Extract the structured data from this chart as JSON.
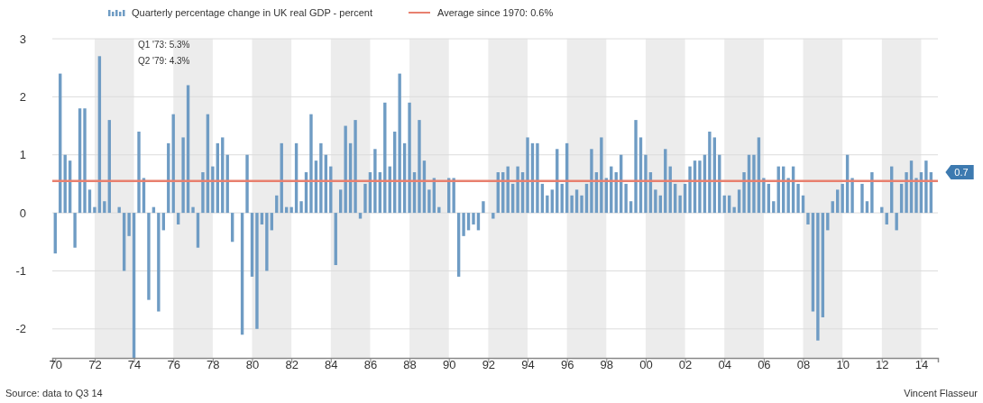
{
  "chart_data": {
    "type": "bar",
    "x": [
      1970,
      1970.25,
      1970.5,
      1970.75,
      1971,
      1971.25,
      1971.5,
      1971.75,
      1972,
      1972.25,
      1972.5,
      1972.75,
      1973,
      1973.25,
      1973.5,
      1973.75,
      1974,
      1974.25,
      1974.5,
      1974.75,
      1975,
      1975.25,
      1975.5,
      1975.75,
      1976,
      1976.25,
      1976.5,
      1976.75,
      1977,
      1977.25,
      1977.5,
      1977.75,
      1978,
      1978.25,
      1978.5,
      1978.75,
      1979,
      1979.25,
      1979.5,
      1979.75,
      1980,
      1980.25,
      1980.5,
      1980.75,
      1981,
      1981.25,
      1981.5,
      1981.75,
      1982,
      1982.25,
      1982.5,
      1982.75,
      1983,
      1983.25,
      1983.5,
      1983.75,
      1984,
      1984.25,
      1984.5,
      1984.75,
      1985,
      1985.25,
      1985.5,
      1985.75,
      1986,
      1986.25,
      1986.5,
      1986.75,
      1987,
      1987.25,
      1987.5,
      1987.75,
      1988,
      1988.25,
      1988.5,
      1988.75,
      1989,
      1989.25,
      1989.5,
      1989.75,
      1990,
      1990.25,
      1990.5,
      1990.75,
      1991,
      1991.25,
      1991.5,
      1991.75,
      1992,
      1992.25,
      1992.5,
      1992.75,
      1993,
      1993.25,
      1993.5,
      1993.75,
      1994,
      1994.25,
      1994.5,
      1994.75,
      1995,
      1995.25,
      1995.5,
      1995.75,
      1996,
      1996.25,
      1996.5,
      1996.75,
      1997,
      1997.25,
      1997.5,
      1997.75,
      1998,
      1998.25,
      1998.5,
      1998.75,
      1999,
      1999.25,
      1999.5,
      1999.75,
      2000,
      2000.25,
      2000.5,
      2000.75,
      2001,
      2001.25,
      2001.5,
      2001.75,
      2002,
      2002.25,
      2002.5,
      2002.75,
      2003,
      2003.25,
      2003.5,
      2003.75,
      2004,
      2004.25,
      2004.5,
      2004.75,
      2005,
      2005.25,
      2005.5,
      2005.75,
      2006,
      2006.25,
      2006.5,
      2006.75,
      2007,
      2007.25,
      2007.5,
      2007.75,
      2008,
      2008.25,
      2008.5,
      2008.75,
      2009,
      2009.25,
      2009.5,
      2009.75,
      2010,
      2010.25,
      2010.5,
      2010.75,
      2011,
      2011.25,
      2011.5,
      2011.75,
      2012,
      2012.25,
      2012.5,
      2012.75,
      2013,
      2013.25,
      2013.5,
      2013.75,
      2014,
      2014.25,
      2014.5
    ],
    "series": [
      {
        "name": "Quarterly percentage change in UK real GDP - percent",
        "color": "#6f9cc4",
        "values": [
          -0.7,
          2.4,
          1.0,
          0.9,
          -0.6,
          1.8,
          1.8,
          0.4,
          0.1,
          2.7,
          0.2,
          1.6,
          null,
          0.1,
          -1.0,
          -0.4,
          -2.5,
          1.4,
          0.6,
          -1.5,
          0.1,
          -1.7,
          -0.3,
          1.2,
          1.7,
          -0.2,
          1.3,
          2.2,
          0.1,
          -0.6,
          0.7,
          1.7,
          0.8,
          1.2,
          1.3,
          1.0,
          -0.5,
          null,
          -2.1,
          1.0,
          -1.1,
          -2.0,
          -0.2,
          -1.0,
          -0.3,
          0.3,
          1.2,
          0.1,
          0.1,
          1.2,
          0.2,
          0.7,
          1.7,
          0.9,
          1.2,
          1.0,
          0.8,
          -0.9,
          0.4,
          1.5,
          1.2,
          1.6,
          -0.1,
          0.5,
          0.7,
          1.1,
          0.7,
          1.9,
          0.8,
          1.4,
          2.4,
          1.2,
          1.9,
          0.7,
          1.6,
          0.9,
          0.4,
          0.6,
          0.1,
          0.0,
          0.6,
          0.6,
          -1.1,
          -0.4,
          -0.3,
          -0.2,
          -0.3,
          0.2,
          0.0,
          -0.1,
          0.7,
          0.7,
          0.8,
          0.5,
          0.8,
          0.7,
          1.3,
          1.2,
          1.2,
          0.5,
          0.3,
          0.4,
          1.1,
          0.5,
          1.2,
          0.3,
          0.4,
          0.3,
          0.5,
          1.1,
          0.7,
          1.3,
          0.6,
          0.8,
          0.7,
          1.0,
          0.5,
          0.2,
          1.6,
          1.3,
          1.0,
          0.7,
          0.4,
          0.3,
          1.1,
          0.8,
          0.5,
          0.3,
          0.5,
          0.8,
          0.9,
          0.9,
          1.0,
          1.4,
          1.3,
          1.0,
          0.3,
          0.3,
          0.1,
          0.4,
          0.7,
          1.0,
          1.0,
          1.3,
          0.6,
          0.5,
          0.2,
          0.8,
          0.8,
          0.6,
          0.8,
          0.5,
          0.3,
          -0.2,
          -1.7,
          -2.2,
          -1.8,
          -0.3,
          0.2,
          0.4,
          0.5,
          1.0,
          0.6,
          0.0,
          0.5,
          0.2,
          0.7,
          0.0,
          0.1,
          -0.2,
          0.8,
          -0.3,
          0.5,
          0.7,
          0.9,
          0.6,
          0.7,
          0.9,
          0.7
        ]
      }
    ],
    "xlim": [
      1969.85,
      2014.85
    ],
    "xticks": [
      {
        "value": 1970,
        "label": "70"
      },
      {
        "value": 1972,
        "label": "72"
      },
      {
        "value": 1974,
        "label": "74"
      },
      {
        "value": 1976,
        "label": "76"
      },
      {
        "value": 1978,
        "label": "78"
      },
      {
        "value": 1980,
        "label": "80"
      },
      {
        "value": 1982,
        "label": "82"
      },
      {
        "value": 1984,
        "label": "84"
      },
      {
        "value": 1986,
        "label": "86"
      },
      {
        "value": 1988,
        "label": "88"
      },
      {
        "value": 1990,
        "label": "90"
      },
      {
        "value": 1992,
        "label": "92"
      },
      {
        "value": 1994,
        "label": "94"
      },
      {
        "value": 1996,
        "label": "96"
      },
      {
        "value": 1998,
        "label": "98"
      },
      {
        "value": 2000,
        "label": "00"
      },
      {
        "value": 2002,
        "label": "02"
      },
      {
        "value": 2004,
        "label": "04"
      },
      {
        "value": 2006,
        "label": "06"
      },
      {
        "value": 2008,
        "label": "08"
      },
      {
        "value": 2010,
        "label": "10"
      },
      {
        "value": 2012,
        "label": "12"
      },
      {
        "value": 2014,
        "label": "14"
      }
    ],
    "ylim": [
      -2.5,
      3
    ],
    "yticks": [
      -2,
      -1,
      0,
      1,
      2,
      3
    ],
    "grid": "y",
    "legend": "top",
    "ref_lines": [
      {
        "axis": "y",
        "value": 0.55,
        "label": "Average since 1970: 0.6%",
        "color": "#e8806f"
      }
    ],
    "bands": [
      {
        "axis": "x",
        "from": 1972,
        "to": 1974,
        "color": "#ececec"
      },
      {
        "axis": "x",
        "from": 1976,
        "to": 1978,
        "color": "#ececec"
      },
      {
        "axis": "x",
        "from": 1980,
        "to": 1982,
        "color": "#ececec"
      },
      {
        "axis": "x",
        "from": 1984,
        "to": 1986,
        "color": "#ececec"
      },
      {
        "axis": "x",
        "from": 1988,
        "to": 1990,
        "color": "#ececec"
      },
      {
        "axis": "x",
        "from": 1992,
        "to": 1994,
        "color": "#ececec"
      },
      {
        "axis": "x",
        "from": 1996,
        "to": 1998,
        "color": "#ececec"
      },
      {
        "axis": "x",
        "from": 2000,
        "to": 2002,
        "color": "#ececec"
      },
      {
        "axis": "x",
        "from": 2004,
        "to": 2006,
        "color": "#ececec"
      },
      {
        "axis": "x",
        "from": 2008,
        "to": 2010,
        "color": "#ececec"
      },
      {
        "axis": "x",
        "from": 2012,
        "to": 2014,
        "color": "#ececec"
      }
    ],
    "annotations": [
      "Q1 '73: 5.3%",
      "Q2 '79: 4.3%",
      {
        "text": "0.7",
        "x": 2014.5,
        "y": 0.7
      },
      "Source: data to Q3 14",
      "Vincent Flasseur"
    ]
  }
}
